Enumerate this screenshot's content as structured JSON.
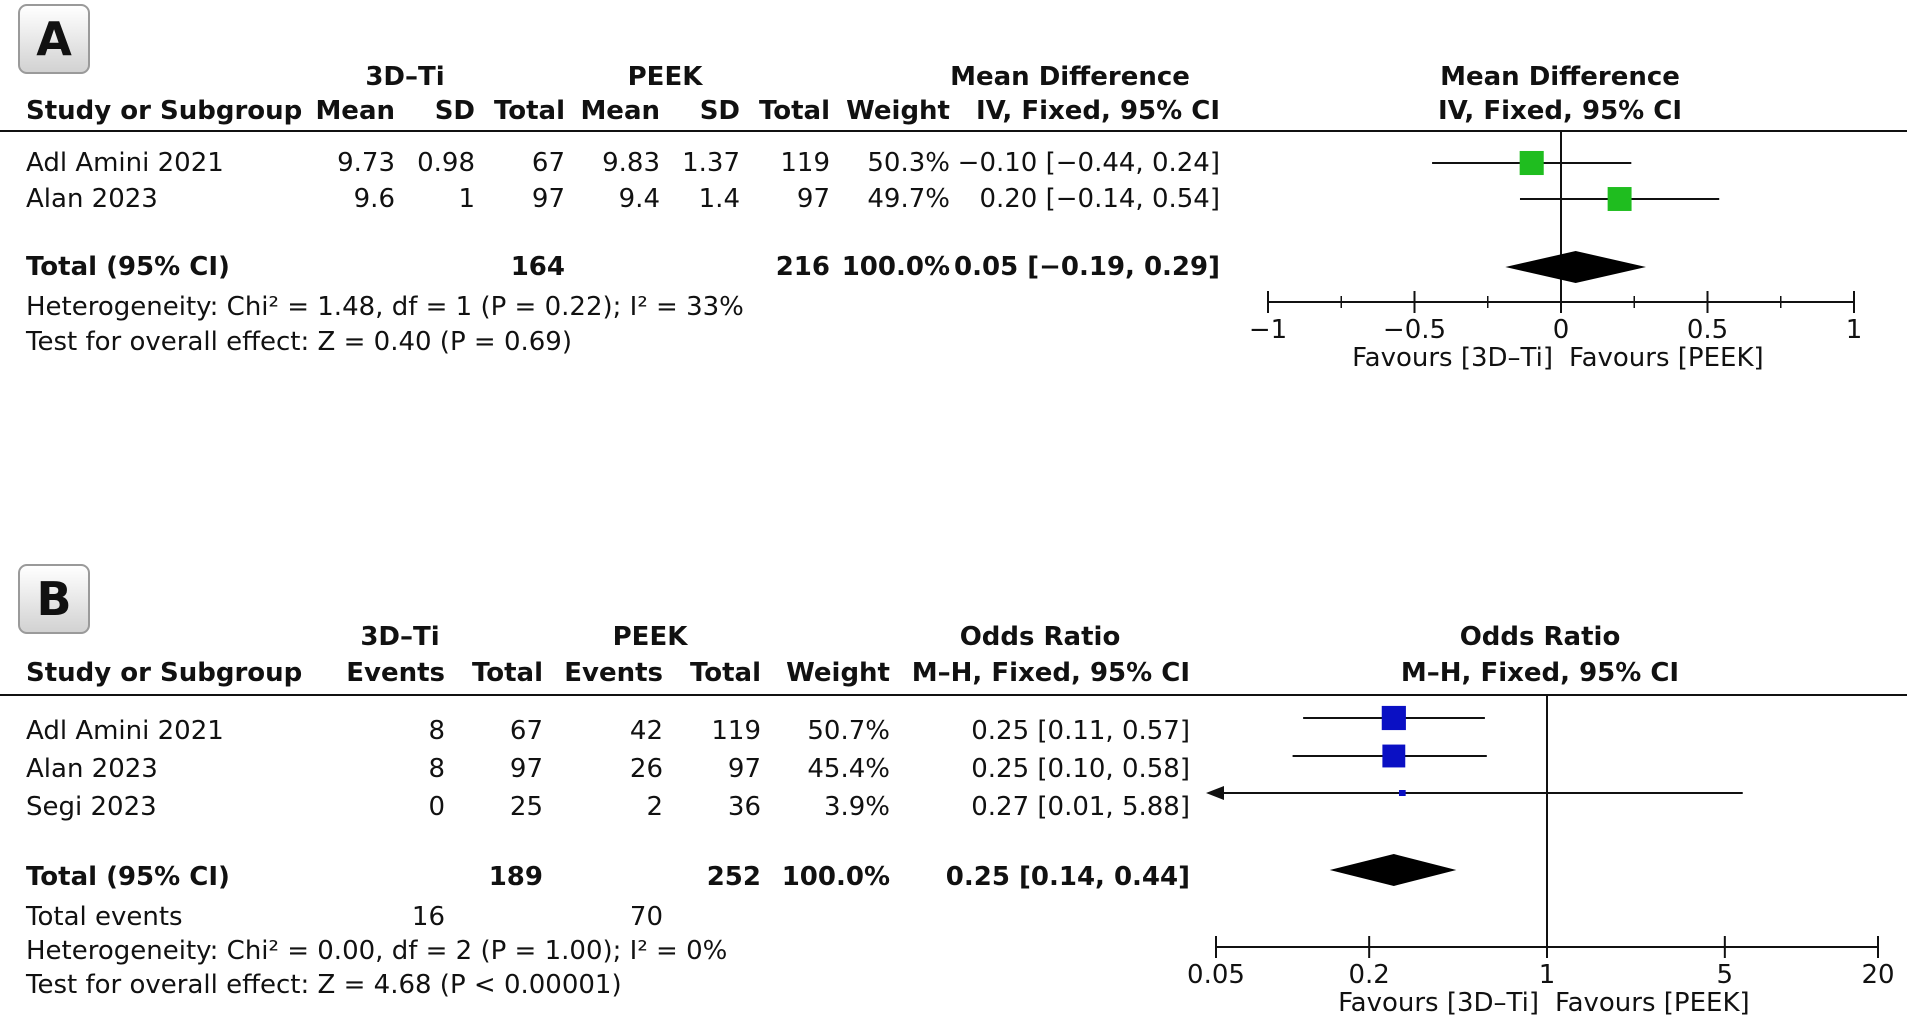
{
  "chart_data": [
    {
      "type": "forest",
      "panel_label": "A",
      "groups": {
        "experimental": "3D–Ti",
        "control": "PEEK"
      },
      "columns": {
        "study": "Study or Subgroup",
        "e_mean": "Mean",
        "e_sd": "SD",
        "e_total": "Total",
        "c_mean": "Mean",
        "c_sd": "SD",
        "c_total": "Total",
        "weight": "Weight",
        "effect_title": "Mean Difference",
        "effect_method": "IV, Fixed, 95% CI",
        "plot_title": "Mean Difference",
        "plot_method": "IV, Fixed, 95% CI"
      },
      "studies": [
        {
          "name": "Adl Amini 2021",
          "e_mean": "9.73",
          "e_sd": "0.98",
          "e_total": "67",
          "c_mean": "9.83",
          "c_sd": "1.37",
          "c_total": "119",
          "weight": "50.3%",
          "ci_text": "−0.10 [−0.44, 0.24]",
          "est": -0.1,
          "lo": -0.44,
          "hi": 0.24,
          "w": 50.3
        },
        {
          "name": "Alan 2023",
          "e_mean": "9.6",
          "e_sd": "1",
          "e_total": "97",
          "c_mean": "9.4",
          "c_sd": "1.4",
          "c_total": "97",
          "weight": "49.7%",
          "ci_text": "0.20 [−0.14, 0.54]",
          "est": 0.2,
          "lo": -0.14,
          "hi": 0.54,
          "w": 49.7
        }
      ],
      "total": {
        "label": "Total (95% CI)",
        "e_total": "164",
        "c_total": "216",
        "weight": "100.0%",
        "ci_text": "0.05 [−0.19, 0.29]",
        "est": 0.05,
        "lo": -0.19,
        "hi": 0.29
      },
      "heterogeneity": "Heterogeneity: Chi² = 1.48, df = 1 (P = 0.22); I² = 33%",
      "overall_effect": "Test for overall effect: Z = 0.40 (P = 0.69)",
      "axis": {
        "scale": "linear",
        "min": -1,
        "max": 1,
        "null": 0,
        "ticks": [
          -1,
          -0.5,
          0,
          0.5,
          1
        ],
        "tick_labels": [
          "−1",
          "−0.5",
          "0",
          "0.5",
          "1"
        ]
      },
      "favours_left": "Favours [3D–Ti]",
      "favours_right": "Favours [PEEK]",
      "marker_color": "#1fbd1f"
    },
    {
      "type": "forest",
      "panel_label": "B",
      "groups": {
        "experimental": "3D–Ti",
        "control": "PEEK"
      },
      "columns": {
        "study": "Study or Subgroup",
        "e_events": "Events",
        "e_total": "Total",
        "c_events": "Events",
        "c_total": "Total",
        "weight": "Weight",
        "effect_title": "Odds Ratio",
        "effect_method": "M–H, Fixed, 95% CI",
        "plot_title": "Odds Ratio",
        "plot_method": "M–H, Fixed, 95% CI"
      },
      "studies": [
        {
          "name": "Adl Amini 2021",
          "e_events": "8",
          "e_total": "67",
          "c_events": "42",
          "c_total": "119",
          "weight": "50.7%",
          "ci_text": "0.25 [0.11, 0.57]",
          "est": 0.25,
          "lo": 0.11,
          "hi": 0.57,
          "w": 50.7
        },
        {
          "name": "Alan 2023",
          "e_events": "8",
          "e_total": "97",
          "c_events": "26",
          "c_total": "97",
          "weight": "45.4%",
          "ci_text": "0.25 [0.10, 0.58]",
          "est": 0.25,
          "lo": 0.1,
          "hi": 0.58,
          "w": 45.4
        },
        {
          "name": "Segi 2023",
          "e_events": "0",
          "e_total": "25",
          "c_events": "2",
          "c_total": "36",
          "weight": "3.9%",
          "ci_text": "0.27 [0.01, 5.88]",
          "est": 0.27,
          "lo": 0.01,
          "hi": 5.88,
          "w": 3.9
        }
      ],
      "total": {
        "label": "Total (95% CI)",
        "e_total": "189",
        "c_total": "252",
        "weight": "100.0%",
        "ci_text": "0.25 [0.14, 0.44]",
        "est": 0.25,
        "lo": 0.14,
        "hi": 0.44
      },
      "total_events": {
        "label": "Total events",
        "e": "16",
        "c": "70"
      },
      "heterogeneity": "Heterogeneity: Chi² = 0.00, df = 2 (P = 1.00); I² = 0%",
      "overall_effect": "Test for overall effect: Z = 4.68 (P < 0.00001)",
      "axis": {
        "scale": "log",
        "min": 0.05,
        "max": 20,
        "null": 1,
        "ticks": [
          0.05,
          0.2,
          1,
          5,
          20
        ],
        "tick_labels": [
          "0.05",
          "0.2",
          "1",
          "5",
          "20"
        ]
      },
      "favours_left": "Favours [3D–Ti]",
      "favours_right": "Favours [PEEK]",
      "marker_color": "#0a10c4"
    }
  ]
}
